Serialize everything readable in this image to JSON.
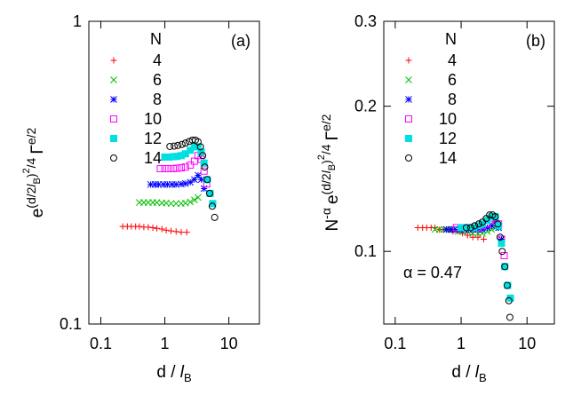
{
  "chart_data": [
    {
      "type": "scatter",
      "panel_label": "(a)",
      "log_x": true,
      "log_y": true,
      "legend": "top-left",
      "legend_title": "N",
      "xlabel": [
        {
          "text": "d / ",
          "pos": "base"
        },
        {
          "text": "l",
          "pos": "base",
          "style": "italic"
        },
        {
          "text": "B",
          "pos": "sub"
        }
      ],
      "ylabel": [
        {
          "text": "e",
          "pos": "base"
        },
        {
          "text": "(d/2",
          "pos": "sup"
        },
        {
          "text": "l",
          "pos": "sup",
          "style": "italic"
        },
        {
          "text": "B",
          "pos": "sup-sub"
        },
        {
          "text": ")",
          "pos": "sup"
        },
        {
          "text": "2",
          "pos": "sup-sup"
        },
        {
          "text": "/4",
          "pos": "sup"
        },
        {
          "text": "Γ",
          "pos": "base"
        },
        {
          "text": "e/2",
          "pos": "sup"
        }
      ],
      "xlim": [
        0.065,
        30
      ],
      "xticks": [
        0.1,
        1,
        10
      ],
      "ylim": [
        0.1,
        1
      ],
      "yticks": [
        0.1,
        1
      ],
      "series": [
        {
          "name": "4",
          "color": "#ff0000",
          "marker": "plus",
          "x": [
            0.22,
            0.26,
            0.3,
            0.35,
            0.4,
            0.47,
            0.55,
            0.65,
            0.75,
            0.9,
            1.05,
            1.25,
            1.5,
            1.8,
            2.2
          ],
          "values": [
            0.21,
            0.21,
            0.21,
            0.21,
            0.21,
            0.209,
            0.209,
            0.208,
            0.207,
            0.206,
            0.204,
            0.203,
            0.202,
            0.201,
            0.201
          ]
        },
        {
          "name": "6",
          "color": "#00c000",
          "marker": "cross",
          "x": [
            0.4,
            0.47,
            0.55,
            0.65,
            0.75,
            0.9,
            1.05,
            1.25,
            1.5,
            1.8,
            2.1,
            2.5,
            2.9,
            3.3
          ],
          "values": [
            0.252,
            0.252,
            0.252,
            0.252,
            0.252,
            0.251,
            0.251,
            0.25,
            0.25,
            0.25,
            0.251,
            0.253,
            0.257,
            0.262
          ]
        },
        {
          "name": "8",
          "color": "#0000ff",
          "marker": "star",
          "x": [
            0.6,
            0.7,
            0.8,
            0.95,
            1.1,
            1.3,
            1.5,
            1.8,
            2.1,
            2.5,
            2.9,
            3.3,
            3.7,
            4.1
          ],
          "values": [
            0.289,
            0.289,
            0.289,
            0.289,
            0.289,
            0.289,
            0.289,
            0.29,
            0.291,
            0.294,
            0.3,
            0.31,
            0.3,
            0.28
          ]
        },
        {
          "name": "10",
          "color": "#ff00ff",
          "marker": "square-open",
          "x": [
            0.85,
            1.0,
            1.15,
            1.35,
            1.55,
            1.8,
            2.1,
            2.5,
            2.9,
            3.3,
            3.7,
            4.1,
            4.5
          ],
          "values": [
            0.326,
            0.326,
            0.326,
            0.326,
            0.327,
            0.328,
            0.33,
            0.335,
            0.345,
            0.36,
            0.35,
            0.32,
            0.29
          ]
        },
        {
          "name": "12",
          "color": "#00e0e0",
          "marker": "square-filled",
          "x": [
            1.0,
            1.15,
            1.35,
            1.55,
            1.8,
            2.1,
            2.5,
            2.9,
            3.3,
            3.7,
            4.1,
            4.6,
            5.1,
            5.6
          ],
          "values": [
            0.356,
            0.356,
            0.357,
            0.358,
            0.36,
            0.365,
            0.375,
            0.385,
            0.385,
            0.37,
            0.34,
            0.3,
            0.27,
            0.25
          ]
        },
        {
          "name": "14",
          "color": "#000000",
          "marker": "circle-open",
          "x": [
            1.2,
            1.4,
            1.6,
            1.85,
            2.1,
            2.4,
            2.7,
            3.0,
            3.3,
            3.6,
            3.9,
            4.2,
            4.6,
            5.0,
            5.5,
            6.0
          ],
          "values": [
            0.386,
            0.387,
            0.389,
            0.392,
            0.396,
            0.401,
            0.405,
            0.405,
            0.4,
            0.385,
            0.36,
            0.33,
            0.3,
            0.27,
            0.245,
            0.225
          ]
        }
      ]
    },
    {
      "type": "scatter",
      "panel_label": "(b)",
      "annotation": "α = 0.47",
      "log_x": true,
      "log_y": true,
      "legend": "top-left",
      "legend_title": "N",
      "xlabel": [
        {
          "text": "d / ",
          "pos": "base"
        },
        {
          "text": "l",
          "pos": "base",
          "style": "italic"
        },
        {
          "text": "B",
          "pos": "sub"
        }
      ],
      "ylabel": [
        {
          "text": "N",
          "pos": "base"
        },
        {
          "text": "-α",
          "pos": "sup"
        },
        {
          "text": "e",
          "pos": "base"
        },
        {
          "text": "(d/2",
          "pos": "sup"
        },
        {
          "text": "l",
          "pos": "sup",
          "style": "italic"
        },
        {
          "text": "B",
          "pos": "sup-sub"
        },
        {
          "text": ")",
          "pos": "sup"
        },
        {
          "text": "2",
          "pos": "sup-sup"
        },
        {
          "text": "/4",
          "pos": "sup"
        },
        {
          "text": "Γ",
          "pos": "base"
        },
        {
          "text": "e/2",
          "pos": "sup"
        }
      ],
      "xlim": [
        0.067,
        26
      ],
      "xticks": [
        0.1,
        1,
        10
      ],
      "ylim": [
        0.0707,
        0.3
      ],
      "yticks": [
        0.1,
        0.2,
        0.3
      ],
      "series": [
        {
          "name": "4",
          "color": "#ff0000",
          "marker": "plus",
          "x": [
            0.22,
            0.26,
            0.3,
            0.35,
            0.4,
            0.47,
            0.55,
            0.65,
            0.75,
            0.9,
            1.05,
            1.25,
            1.5,
            1.8,
            2.2
          ],
          "values": [
            0.112,
            0.112,
            0.112,
            0.112,
            0.112,
            0.111,
            0.111,
            0.111,
            0.11,
            0.11,
            0.109,
            0.108,
            0.107,
            0.107,
            0.106
          ]
        },
        {
          "name": "6",
          "color": "#00c000",
          "marker": "cross",
          "x": [
            0.4,
            0.47,
            0.55,
            0.65,
            0.75,
            0.9,
            1.05,
            1.25,
            1.5,
            1.8,
            2.1,
            2.5,
            2.9,
            3.3
          ],
          "values": [
            0.111,
            0.111,
            0.111,
            0.111,
            0.111,
            0.11,
            0.11,
            0.11,
            0.109,
            0.109,
            0.109,
            0.11,
            0.111,
            0.112
          ]
        },
        {
          "name": "8",
          "color": "#0000ff",
          "marker": "star",
          "x": [
            0.6,
            0.7,
            0.8,
            0.95,
            1.1,
            1.3,
            1.5,
            1.8,
            2.1,
            2.5,
            2.9,
            3.3,
            3.7,
            4.1
          ],
          "values": [
            0.111,
            0.111,
            0.111,
            0.111,
            0.111,
            0.111,
            0.111,
            0.111,
            0.111,
            0.112,
            0.113,
            0.115,
            0.112,
            0.106
          ]
        },
        {
          "name": "10",
          "color": "#ff00ff",
          "marker": "square-open",
          "x": [
            0.85,
            1.0,
            1.15,
            1.35,
            1.55,
            1.8,
            2.1,
            2.5,
            2.9,
            3.3,
            3.7,
            4.1,
            4.5
          ],
          "values": [
            0.112,
            0.112,
            0.112,
            0.112,
            0.112,
            0.112,
            0.113,
            0.114,
            0.116,
            0.117,
            0.114,
            0.106,
            0.098
          ]
        },
        {
          "name": "12",
          "color": "#00e0e0",
          "marker": "square-filled",
          "x": [
            1.0,
            1.15,
            1.35,
            1.55,
            1.8,
            2.1,
            2.5,
            2.9,
            3.3,
            3.7,
            4.1,
            4.6,
            5.1,
            5.6
          ],
          "values": [
            0.112,
            0.112,
            0.112,
            0.112,
            0.113,
            0.114,
            0.116,
            0.118,
            0.118,
            0.113,
            0.104,
            0.093,
            0.085,
            0.08
          ]
        },
        {
          "name": "14",
          "color": "#000000",
          "marker": "circle-open",
          "x": [
            1.2,
            1.4,
            1.6,
            1.85,
            2.1,
            2.4,
            2.7,
            3.0,
            3.3,
            3.6,
            3.9,
            4.2,
            4.6,
            5.0,
            5.3,
            5.5
          ],
          "values": [
            0.112,
            0.112,
            0.113,
            0.114,
            0.115,
            0.117,
            0.119,
            0.119,
            0.118,
            0.114,
            0.107,
            0.1,
            0.093,
            0.085,
            0.079,
            0.073
          ]
        }
      ]
    }
  ]
}
